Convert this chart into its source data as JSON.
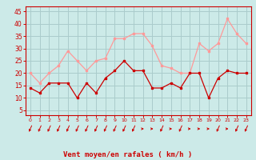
{
  "x": [
    0,
    1,
    2,
    3,
    4,
    5,
    6,
    7,
    8,
    9,
    10,
    11,
    12,
    13,
    14,
    15,
    16,
    17,
    18,
    19,
    20,
    21,
    22,
    23
  ],
  "vent_moyen": [
    14,
    12,
    16,
    16,
    16,
    10,
    16,
    12,
    18,
    21,
    25,
    21,
    21,
    14,
    14,
    16,
    14,
    20,
    20,
    10,
    18,
    21,
    20,
    20
  ],
  "rafales": [
    20,
    16,
    20,
    23,
    29,
    25,
    21,
    25,
    26,
    34,
    34,
    36,
    36,
    31,
    23,
    22,
    20,
    20,
    32,
    29,
    32,
    42,
    36,
    32
  ],
  "dark_red": "#cc0000",
  "light_red": "#ff9999",
  "bg_color": "#cceae8",
  "grid_color": "#aacccc",
  "xlabel": "Vent moyen/en rafales ( km/h )",
  "ylabel_ticks": [
    5,
    10,
    15,
    20,
    25,
    30,
    35,
    40,
    45
  ],
  "ylim": [
    3,
    47
  ],
  "xlim": [
    -0.5,
    23.5
  ],
  "xlabel_color": "#cc0000",
  "axis_color": "#cc0000",
  "tick_color": "#cc0000",
  "wind_dirs": [
    225,
    225,
    225,
    225,
    225,
    225,
    225,
    225,
    225,
    225,
    225,
    225,
    90,
    90,
    225,
    90,
    225,
    90,
    90,
    90,
    225,
    90,
    225,
    225
  ]
}
